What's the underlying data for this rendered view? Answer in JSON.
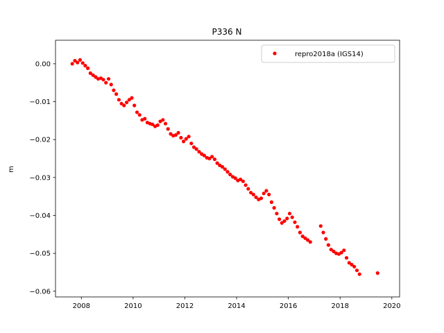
{
  "chart_data": {
    "type": "scatter",
    "title": "P336 N",
    "xlabel": "",
    "ylabel": "m",
    "xlim": [
      2007.0,
      2020.3
    ],
    "ylim": [
      -0.0615,
      0.0062
    ],
    "xticks": [
      2008,
      2010,
      2012,
      2014,
      2016,
      2018,
      2020
    ],
    "xtick_labels": [
      "2008",
      "2010",
      "2012",
      "2014",
      "2016",
      "2018",
      "2020"
    ],
    "yticks": [
      0.0,
      -0.01,
      -0.02,
      -0.03,
      -0.04,
      -0.05,
      -0.06
    ],
    "ytick_labels": [
      "0.00",
      "−0.01",
      "−0.02",
      "−0.03",
      "−0.04",
      "−0.05",
      "−0.06"
    ],
    "grid": false,
    "legend_position": "top-right",
    "series": [
      {
        "name": "repro2018a (IGS14)",
        "color": "#ff0000",
        "marker": "circle",
        "x": [
          2007.65,
          2007.75,
          2007.85,
          2007.95,
          2008.05,
          2008.15,
          2008.25,
          2008.35,
          2008.45,
          2008.55,
          2008.65,
          2008.75,
          2008.85,
          2008.95,
          2009.05,
          2009.15,
          2009.25,
          2009.35,
          2009.45,
          2009.55,
          2009.65,
          2009.75,
          2009.85,
          2009.95,
          2010.05,
          2010.15,
          2010.25,
          2010.35,
          2010.45,
          2010.55,
          2010.65,
          2010.75,
          2010.85,
          2010.95,
          2011.05,
          2011.15,
          2011.25,
          2011.35,
          2011.45,
          2011.55,
          2011.65,
          2011.75,
          2011.85,
          2011.95,
          2012.05,
          2012.15,
          2012.25,
          2012.35,
          2012.45,
          2012.55,
          2012.65,
          2012.75,
          2012.85,
          2012.95,
          2013.05,
          2013.15,
          2013.25,
          2013.35,
          2013.45,
          2013.55,
          2013.65,
          2013.75,
          2013.85,
          2013.95,
          2014.05,
          2014.15,
          2014.25,
          2014.35,
          2014.45,
          2014.55,
          2014.65,
          2014.75,
          2014.85,
          2014.95,
          2015.05,
          2015.15,
          2015.25,
          2015.35,
          2015.45,
          2015.55,
          2015.65,
          2015.75,
          2015.85,
          2015.95,
          2016.05,
          2016.15,
          2016.25,
          2016.35,
          2016.45,
          2016.55,
          2016.65,
          2016.75,
          2016.85,
          2017.25,
          2017.35,
          2017.45,
          2017.55,
          2017.65,
          2017.75,
          2017.85,
          2017.95,
          2018.05,
          2018.15,
          2018.25,
          2018.35,
          2018.45,
          2018.55,
          2018.65,
          2018.75,
          2019.45
        ],
        "y": [
          0.0,
          0.0008,
          0.0003,
          0.001,
          0.0002,
          -0.0005,
          -0.0012,
          -0.0025,
          -0.003,
          -0.0035,
          -0.004,
          -0.0038,
          -0.0042,
          -0.005,
          -0.004,
          -0.0055,
          -0.007,
          -0.008,
          -0.0095,
          -0.0105,
          -0.011,
          -0.0102,
          -0.0095,
          -0.009,
          -0.011,
          -0.0128,
          -0.0135,
          -0.0148,
          -0.0145,
          -0.0155,
          -0.0158,
          -0.016,
          -0.0165,
          -0.0162,
          -0.0152,
          -0.0148,
          -0.0158,
          -0.0172,
          -0.0185,
          -0.019,
          -0.0188,
          -0.0182,
          -0.0195,
          -0.0205,
          -0.0198,
          -0.0192,
          -0.021,
          -0.022,
          -0.0225,
          -0.0232,
          -0.0238,
          -0.0242,
          -0.0248,
          -0.025,
          -0.0245,
          -0.0252,
          -0.0262,
          -0.0268,
          -0.0272,
          -0.0278,
          -0.0285,
          -0.0292,
          -0.0298,
          -0.0302,
          -0.0308,
          -0.0305,
          -0.031,
          -0.032,
          -0.033,
          -0.034,
          -0.0345,
          -0.0352,
          -0.0358,
          -0.0355,
          -0.0342,
          -0.0335,
          -0.0345,
          -0.0365,
          -0.038,
          -0.0395,
          -0.041,
          -0.042,
          -0.0415,
          -0.0408,
          -0.0395,
          -0.0405,
          -0.0418,
          -0.043,
          -0.0445,
          -0.0455,
          -0.046,
          -0.0465,
          -0.047,
          -0.0428,
          -0.0445,
          -0.0462,
          -0.0478,
          -0.049,
          -0.0495,
          -0.05,
          -0.0502,
          -0.0498,
          -0.0492,
          -0.0512,
          -0.0525,
          -0.053,
          -0.0535,
          -0.0545,
          -0.0555,
          -0.0552
        ]
      }
    ]
  }
}
